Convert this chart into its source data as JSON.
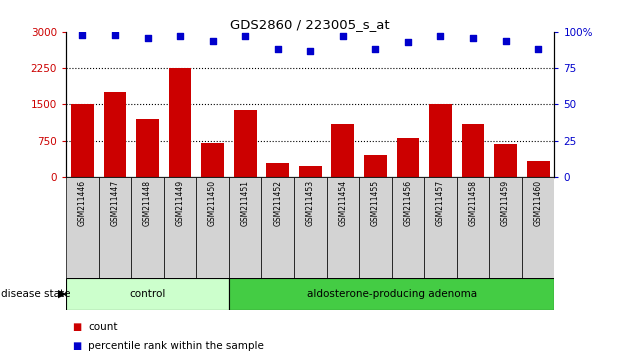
{
  "title": "GDS2860 / 223005_s_at",
  "samples": [
    "GSM211446",
    "GSM211447",
    "GSM211448",
    "GSM211449",
    "GSM211450",
    "GSM211451",
    "GSM211452",
    "GSM211453",
    "GSM211454",
    "GSM211455",
    "GSM211456",
    "GSM211457",
    "GSM211458",
    "GSM211459",
    "GSM211460"
  ],
  "counts": [
    1500,
    1750,
    1200,
    2250,
    700,
    1380,
    280,
    230,
    1100,
    450,
    800,
    1500,
    1100,
    680,
    330
  ],
  "percentiles": [
    98,
    98,
    96,
    97,
    94,
    97,
    88,
    87,
    97,
    88,
    93,
    97,
    96,
    94,
    88
  ],
  "control_count": 5,
  "ylim_left": [
    0,
    3000
  ],
  "ylim_right": [
    0,
    100
  ],
  "yticks_left": [
    0,
    750,
    1500,
    2250,
    3000
  ],
  "yticks_right": [
    0,
    25,
    50,
    75,
    100
  ],
  "bar_color": "#cc0000",
  "dot_color": "#0000cc",
  "control_color": "#ccffcc",
  "adenoma_color": "#44cc44",
  "label_control": "control",
  "label_adenoma": "aldosterone-producing adenoma",
  "disease_state_label": "disease state",
  "legend_count": "count",
  "legend_percentile": "percentile rank within the sample",
  "background_color": "#ffffff",
  "grey_box_color": "#d3d3d3"
}
